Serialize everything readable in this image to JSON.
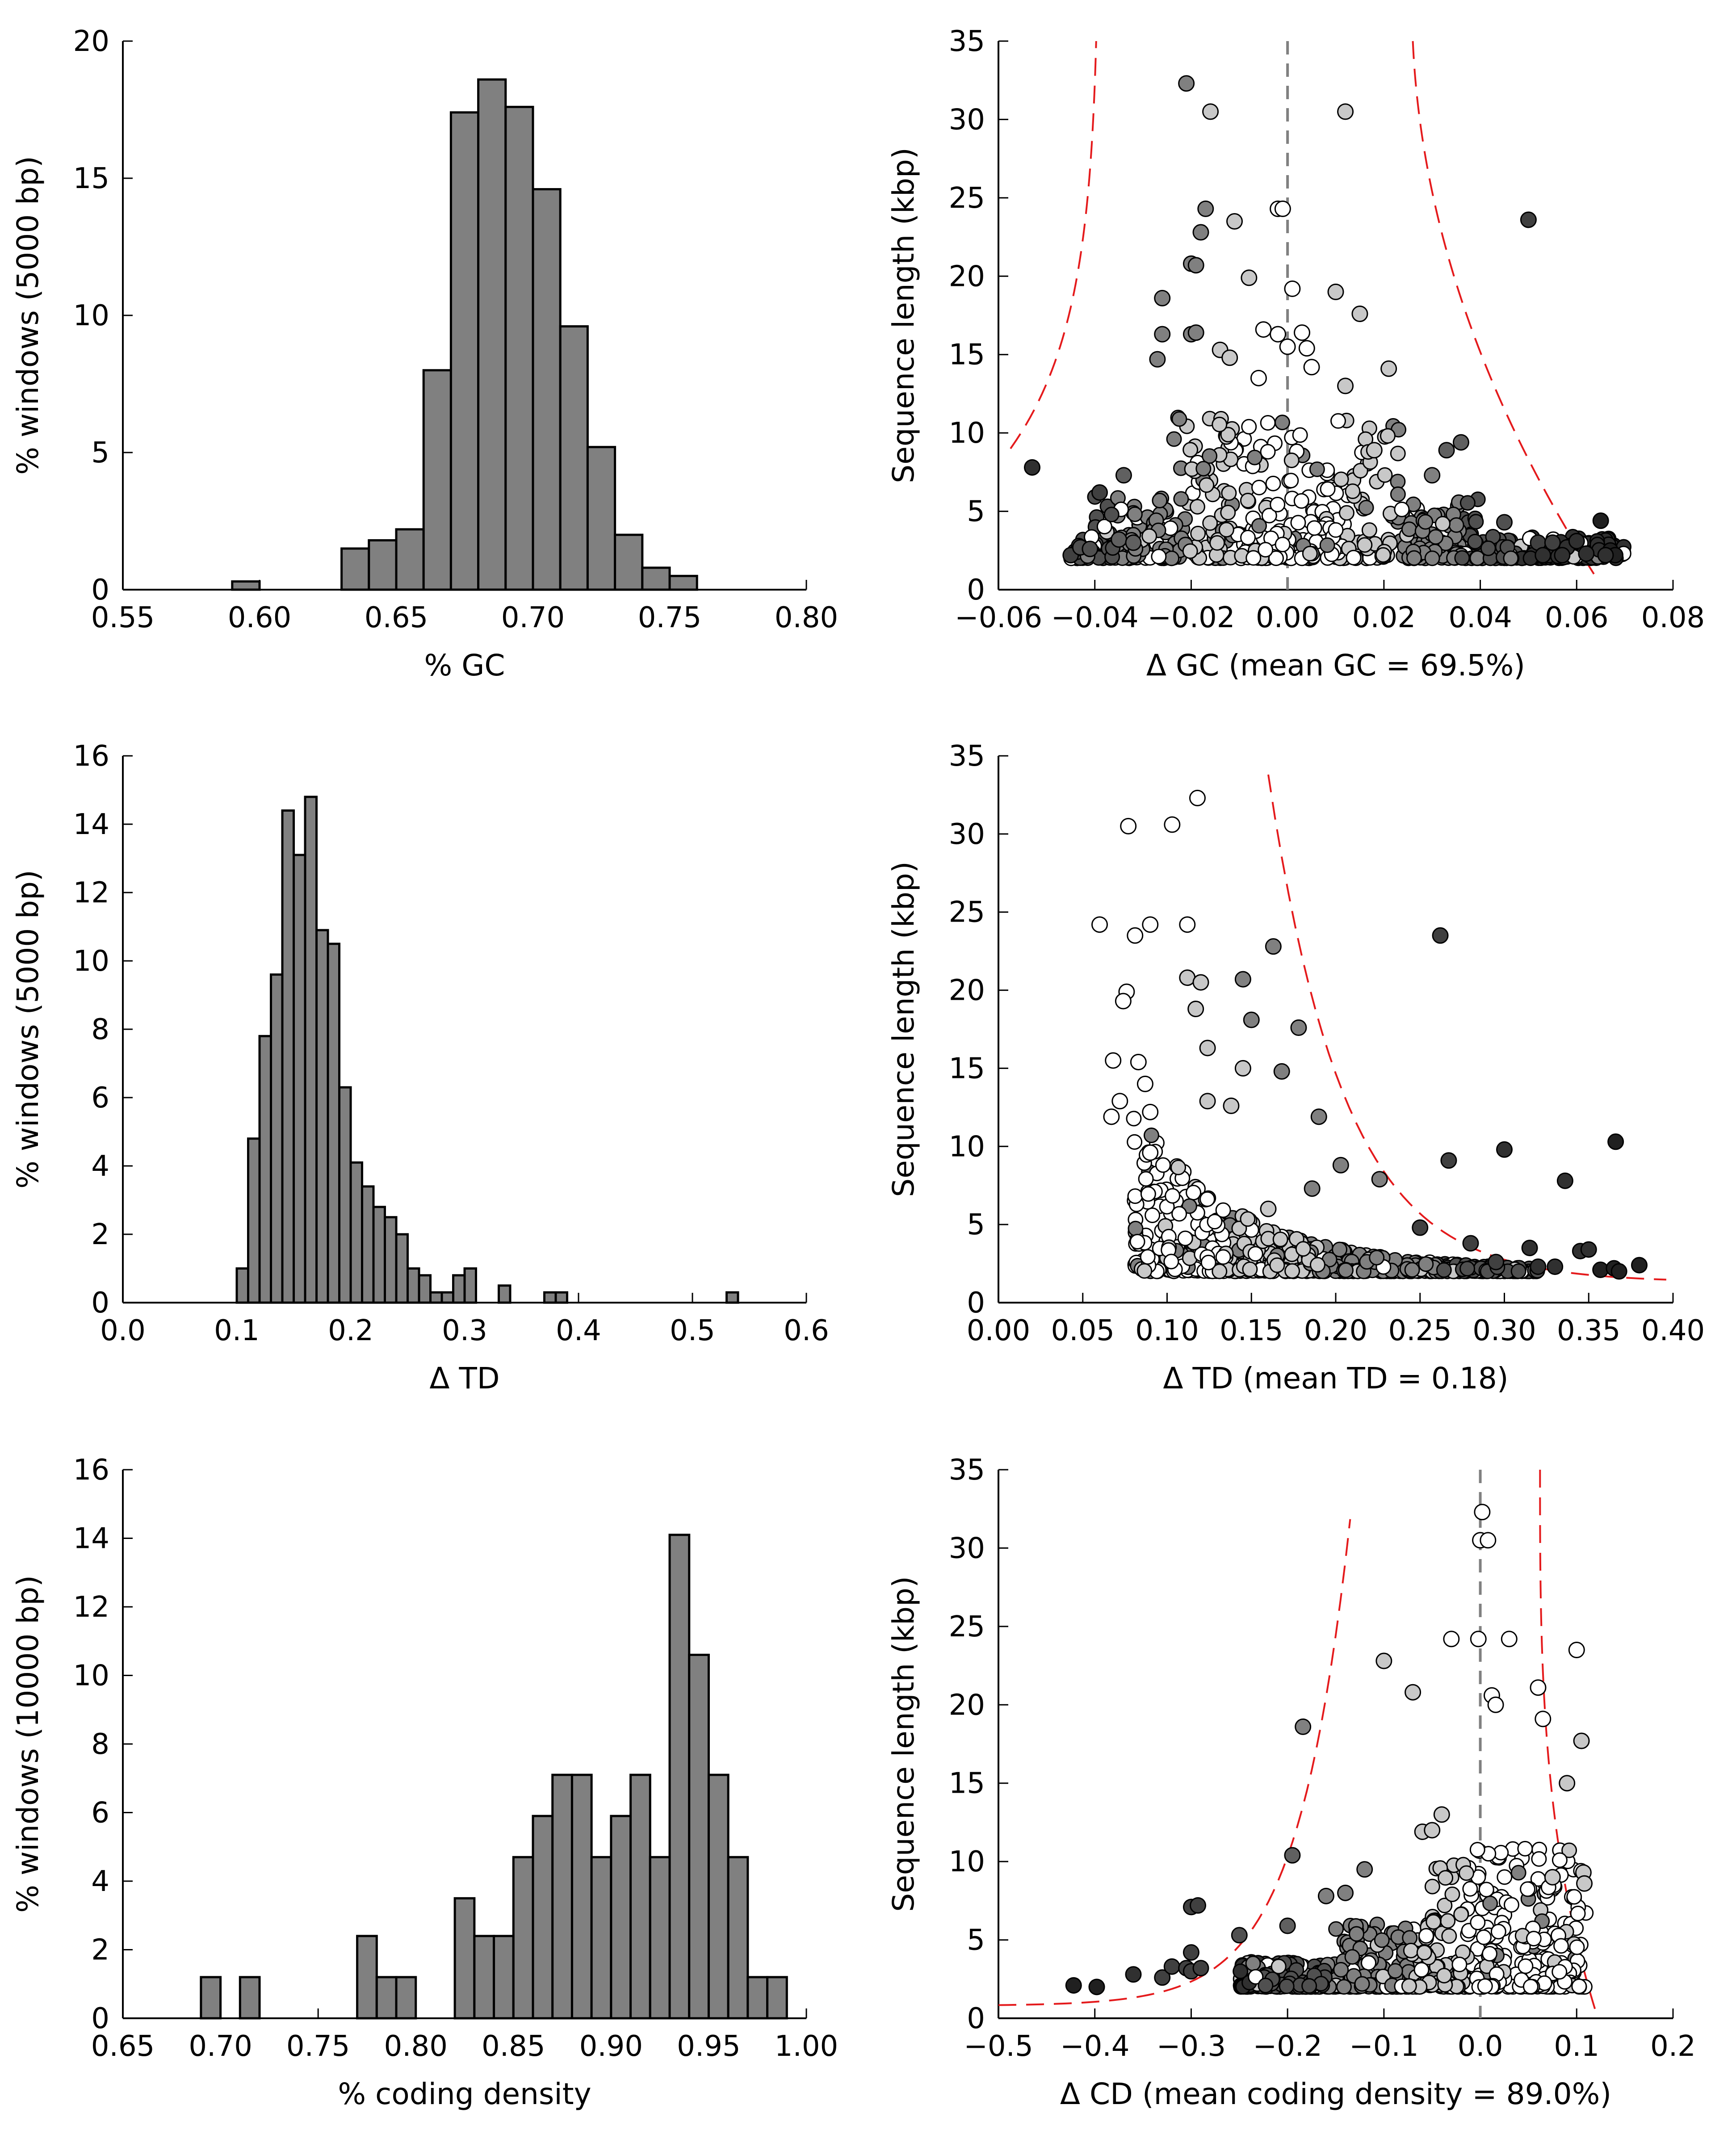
{
  "chart_data": [
    {
      "type": "bar",
      "xlabel": "% GC",
      "ylabel": "% windows (5000 bp)",
      "xlim": [
        0.55,
        0.8
      ],
      "ylim": [
        0,
        20
      ],
      "xticks": [
        "0.55",
        "0.60",
        "0.65",
        "0.70",
        "0.75",
        "0.80"
      ],
      "yticks": [
        "0",
        "5",
        "10",
        "15",
        "20"
      ],
      "bin_edges": [
        0.59,
        0.6,
        0.61,
        0.62,
        0.63,
        0.64,
        0.65,
        0.66,
        0.67,
        0.68,
        0.69,
        0.7,
        0.71,
        0.72,
        0.73,
        0.74,
        0.75,
        0.76
      ],
      "values": [
        0.3,
        0,
        0,
        0,
        1.5,
        1.8,
        2.2,
        8.0,
        17.4,
        18.6,
        17.6,
        14.6,
        9.6,
        5.2,
        2.0,
        0.8,
        0.5
      ]
    },
    {
      "type": "scatter",
      "xlabel": "Δ GC (mean GC = 69.5%)",
      "ylabel": "Sequence length (kbp)",
      "xlim": [
        -0.06,
        0.08
      ],
      "ylim": [
        0,
        35
      ],
      "xticks": [
        "−0.06",
        "−0.04",
        "−0.02",
        "0.00",
        "0.02",
        "0.04",
        "0.06",
        "0.08"
      ],
      "yticks": [
        "0",
        "5",
        "10",
        "15",
        "20",
        "25",
        "30",
        "35"
      ],
      "mean_line": 0,
      "points": [
        [
          -0.053,
          7.8
        ],
        [
          -0.039,
          6.2
        ],
        [
          -0.026,
          18.6
        ],
        [
          -0.026,
          16.3
        ],
        [
          -0.027,
          14.7
        ],
        [
          -0.021,
          32.3
        ],
        [
          -0.016,
          30.5
        ],
        [
          0.012,
          30.5
        ],
        [
          -0.017,
          24.3
        ],
        [
          -0.018,
          22.8
        ],
        [
          -0.011,
          23.5
        ],
        [
          -0.002,
          24.3
        ],
        [
          -0.001,
          24.3
        ],
        [
          0.05,
          23.6
        ],
        [
          -0.02,
          20.8
        ],
        [
          -0.019,
          20.7
        ],
        [
          -0.008,
          19.9
        ],
        [
          0.001,
          19.2
        ],
        [
          0.01,
          19.0
        ],
        [
          -0.02,
          16.3
        ],
        [
          -0.019,
          16.4
        ],
        [
          -0.014,
          15.3
        ],
        [
          -0.012,
          14.8
        ],
        [
          -0.005,
          16.6
        ],
        [
          -0.002,
          16.3
        ],
        [
          0.0,
          15.5
        ],
        [
          0.003,
          16.4
        ],
        [
          0.004,
          15.4
        ],
        [
          0.015,
          17.6
        ],
        [
          0.021,
          14.1
        ],
        [
          0.005,
          14.2
        ],
        [
          -0.006,
          13.5
        ],
        [
          0.012,
          13.0
        ],
        [
          0.033,
          8.9
        ],
        [
          0.036,
          9.4
        ],
        [
          0.03,
          7.3
        ],
        [
          0.018,
          8.9
        ],
        [
          0.045,
          4.3
        ],
        [
          0.052,
          3.0
        ],
        [
          0.055,
          3.0
        ],
        [
          0.058,
          2.7
        ],
        [
          0.06,
          3.1
        ],
        [
          0.065,
          4.4
        ],
        [
          0.067,
          2.5
        ],
        [
          0.068,
          2.2
        ],
        [
          0.066,
          2.2
        ],
        [
          0.062,
          2.3
        ],
        [
          0.057,
          2.2
        ],
        [
          0.053,
          2.2
        ],
        [
          -0.045,
          2.2
        ],
        [
          -0.043,
          2.7
        ],
        [
          -0.041,
          2.6
        ],
        [
          -0.035,
          3.2
        ],
        [
          -0.034,
          7.3
        ],
        [
          -0.032,
          3.0
        ]
      ],
      "point_shades": [
        "#303030",
        "#404040",
        "#808080",
        "#808080",
        "#808080",
        "#808080",
        "#c8c8c8",
        "#c8c8c8",
        "#808080",
        "#808080",
        "#c8c8c8",
        "#ffffff",
        "#ffffff",
        "#404040",
        "#808080",
        "#808080",
        "#c8c8c8",
        "#ffffff",
        "#c8c8c8",
        "#808080",
        "#808080",
        "#c8c8c8",
        "#c8c8c8",
        "#ffffff",
        "#ffffff",
        "#ffffff",
        "#ffffff",
        "#ffffff",
        "#c8c8c8",
        "#c8c8c8",
        "#ffffff",
        "#ffffff",
        "#c8c8c8",
        "#606060",
        "#606060",
        "#808080",
        "#c8c8c8",
        "#505050",
        "#404040",
        "#404040",
        "#303030",
        "#303030",
        "#202020",
        "#202020",
        "#202020",
        "#303030",
        "#303030",
        "#303030",
        "#303030",
        "#404040",
        "#505050",
        "#505050",
        "#606060",
        "#606060",
        "#606060"
      ],
      "dense_cluster": "points concentrated between 2 and 10 kbp across Δ GC −0.045 to 0.07",
      "threshold_curve": "red dashed"
    },
    {
      "type": "bar",
      "xlabel": "Δ TD",
      "ylabel": "% windows (5000 bp)",
      "xlim": [
        0.0,
        0.6
      ],
      "ylim": [
        0,
        16
      ],
      "xticks": [
        "0.0",
        "0.1",
        "0.2",
        "0.3",
        "0.4",
        "0.5",
        "0.6"
      ],
      "yticks": [
        "0",
        "2",
        "4",
        "6",
        "8",
        "10",
        "12",
        "14",
        "16"
      ],
      "bin_edges": [
        0.1,
        0.11,
        0.12,
        0.13,
        0.14,
        0.15,
        0.16,
        0.17,
        0.18,
        0.19,
        0.2,
        0.21,
        0.22,
        0.23,
        0.24,
        0.25,
        0.26,
        0.27,
        0.28,
        0.29,
        0.3,
        0.31,
        0.32,
        0.33,
        0.34,
        0.35,
        0.36,
        0.37,
        0.38,
        0.39,
        0.4,
        0.41,
        0.42,
        0.43,
        0.44,
        0.45,
        0.46,
        0.47,
        0.48,
        0.49,
        0.5,
        0.51,
        0.52,
        0.53,
        0.54
      ],
      "values": [
        1.0,
        4.8,
        7.8,
        9.6,
        14.4,
        13.1,
        14.8,
        10.9,
        10.5,
        6.3,
        4.1,
        3.4,
        2.8,
        2.5,
        2.0,
        1.0,
        0.8,
        0.3,
        0.3,
        0.8,
        1.0,
        0.0,
        0.0,
        0.5,
        0.0,
        0.0,
        0.0,
        0.3,
        0.3,
        0.0,
        0.0,
        0.0,
        0.0,
        0.0,
        0.0,
        0.0,
        0.0,
        0.0,
        0.0,
        0.0,
        0.0,
        0.0,
        0.0,
        0.3
      ]
    },
    {
      "type": "scatter",
      "xlabel": "Δ TD (mean TD = 0.18)",
      "ylabel": "Sequence length (kbp)",
      "xlim": [
        0.0,
        0.4
      ],
      "ylim": [
        0,
        35
      ],
      "xticks": [
        "0.00",
        "0.05",
        "0.10",
        "0.15",
        "0.20",
        "0.25",
        "0.30",
        "0.35",
        "0.40"
      ],
      "yticks": [
        "0",
        "5",
        "10",
        "15",
        "20",
        "25",
        "30",
        "35"
      ],
      "points": [
        [
          0.077,
          30.5
        ],
        [
          0.103,
          30.6
        ],
        [
          0.118,
          32.3
        ],
        [
          0.06,
          24.2
        ],
        [
          0.081,
          23.5
        ],
        [
          0.09,
          24.2
        ],
        [
          0.112,
          24.2
        ],
        [
          0.163,
          22.8
        ],
        [
          0.262,
          23.5
        ],
        [
          0.076,
          19.9
        ],
        [
          0.074,
          19.3
        ],
        [
          0.112,
          20.8
        ],
        [
          0.12,
          20.5
        ],
        [
          0.145,
          20.7
        ],
        [
          0.178,
          17.6
        ],
        [
          0.15,
          18.1
        ],
        [
          0.117,
          18.8
        ],
        [
          0.068,
          15.5
        ],
        [
          0.083,
          15.4
        ],
        [
          0.087,
          14.0
        ],
        [
          0.09,
          12.2
        ],
        [
          0.124,
          16.3
        ],
        [
          0.145,
          15.0
        ],
        [
          0.168,
          14.8
        ],
        [
          0.124,
          12.9
        ],
        [
          0.138,
          12.6
        ],
        [
          0.19,
          11.9
        ],
        [
          0.3,
          9.8
        ],
        [
          0.267,
          9.1
        ],
        [
          0.336,
          7.8
        ],
        [
          0.366,
          10.3
        ],
        [
          0.345,
          3.3
        ],
        [
          0.35,
          3.4
        ],
        [
          0.357,
          2.1
        ],
        [
          0.365,
          2.2
        ],
        [
          0.368,
          2.0
        ],
        [
          0.38,
          2.4
        ],
        [
          0.33,
          2.3
        ],
        [
          0.32,
          2.3
        ],
        [
          0.315,
          3.5
        ],
        [
          0.295,
          2.6
        ],
        [
          0.28,
          3.8
        ],
        [
          0.25,
          4.8
        ],
        [
          0.226,
          7.9
        ],
        [
          0.203,
          8.8
        ],
        [
          0.186,
          7.3
        ],
        [
          0.09,
          9.6
        ],
        [
          0.072,
          12.9
        ],
        [
          0.067,
          11.9
        ],
        [
          0.16,
          6.0
        ]
      ],
      "point_shades": [
        "#ffffff",
        "#ffffff",
        "#ffffff",
        "#ffffff",
        "#ffffff",
        "#ffffff",
        "#ffffff",
        "#808080",
        "#404040",
        "#ffffff",
        "#ffffff",
        "#c8c8c8",
        "#c8c8c8",
        "#808080",
        "#808080",
        "#808080",
        "#c8c8c8",
        "#ffffff",
        "#ffffff",
        "#ffffff",
        "#ffffff",
        "#c8c8c8",
        "#c8c8c8",
        "#808080",
        "#c8c8c8",
        "#c8c8c8",
        "#808080",
        "#303030",
        "#404040",
        "#303030",
        "#202020",
        "#303030",
        "#303030",
        "#202020",
        "#202020",
        "#202020",
        "#202020",
        "#303030",
        "#303030",
        "#303030",
        "#404040",
        "#404040",
        "#404040",
        "#808080",
        "#808080",
        "#808080",
        "#ffffff",
        "#ffffff",
        "#ffffff",
        "#c8c8c8"
      ],
      "dense_cluster": "points concentrated between 2 and 10 kbp across Δ TD 0.08 to 0.30",
      "threshold_curve": "red dashed"
    },
    {
      "type": "bar",
      "xlabel": "% coding density",
      "ylabel": "% windows (10000 bp)",
      "xlim": [
        0.65,
        1.0
      ],
      "ylim": [
        0,
        16
      ],
      "xticks": [
        "0.65",
        "0.70",
        "0.75",
        "0.80",
        "0.85",
        "0.90",
        "0.95",
        "1.00"
      ],
      "yticks": [
        "0",
        "2",
        "4",
        "6",
        "8",
        "10",
        "12",
        "14",
        "16"
      ],
      "bin_edges": [
        0.69,
        0.7,
        0.71,
        0.72,
        0.73,
        0.74,
        0.75,
        0.76,
        0.77,
        0.78,
        0.79,
        0.8,
        0.81,
        0.82,
        0.83,
        0.84,
        0.85,
        0.86,
        0.87,
        0.88,
        0.89,
        0.9,
        0.91,
        0.92,
        0.93,
        0.94,
        0.95,
        0.96,
        0.97,
        0.98,
        0.99
      ],
      "values": [
        1.2,
        0.0,
        1.2,
        0.0,
        0.0,
        0.0,
        0.0,
        0.0,
        2.4,
        1.2,
        1.2,
        0.0,
        0.0,
        3.5,
        2.4,
        2.4,
        4.7,
        5.9,
        7.1,
        7.1,
        4.7,
        5.9,
        7.1,
        4.7,
        14.1,
        10.6,
        7.1,
        4.7,
        1.2,
        1.2
      ]
    },
    {
      "type": "scatter",
      "xlabel": "Δ CD (mean coding density = 89.0%)",
      "ylabel": "Sequence length (kbp)",
      "xlim": [
        -0.5,
        0.2
      ],
      "ylim": [
        0,
        35
      ],
      "xticks": [
        "−0.5",
        "−0.4",
        "−0.3",
        "−0.2",
        "−0.1",
        "0.0",
        "0.1",
        "0.2"
      ],
      "yticks": [
        "0",
        "5",
        "10",
        "15",
        "20",
        "25",
        "30",
        "35"
      ],
      "mean_line": 0,
      "points": [
        [
          -0.422,
          2.1
        ],
        [
          -0.398,
          2.0
        ],
        [
          -0.36,
          2.8
        ],
        [
          -0.33,
          2.6
        ],
        [
          -0.32,
          3.3
        ],
        [
          -0.305,
          3.2
        ],
        [
          -0.3,
          3.0
        ],
        [
          -0.29,
          3.2
        ],
        [
          -0.3,
          7.1
        ],
        [
          -0.293,
          7.2
        ],
        [
          -0.3,
          4.2
        ],
        [
          -0.25,
          5.3
        ],
        [
          -0.2,
          5.9
        ],
        [
          -0.195,
          10.4
        ],
        [
          -0.184,
          18.6
        ],
        [
          -0.1,
          22.8
        ],
        [
          -0.07,
          20.8
        ],
        [
          -0.03,
          24.2
        ],
        [
          -0.002,
          24.2
        ],
        [
          0.03,
          24.2
        ],
        [
          0.1,
          23.5
        ],
        [
          0.105,
          17.7
        ],
        [
          0.09,
          15.0
        ],
        [
          0.0,
          30.5
        ],
        [
          0.008,
          30.5
        ],
        [
          0.002,
          32.3
        ],
        [
          0.012,
          20.6
        ],
        [
          0.016,
          20.0
        ],
        [
          0.06,
          21.1
        ],
        [
          0.065,
          19.1
        ],
        [
          0.075,
          9.0
        ],
        [
          0.107,
          9.3
        ],
        [
          0.108,
          8.6
        ],
        [
          -0.06,
          11.9
        ],
        [
          -0.05,
          12.0
        ],
        [
          -0.04,
          13.0
        ],
        [
          -0.12,
          9.5
        ],
        [
          -0.14,
          8.0
        ],
        [
          -0.16,
          7.8
        ]
      ],
      "point_shades": [
        "#202020",
        "#202020",
        "#303030",
        "#404040",
        "#404040",
        "#404040",
        "#404040",
        "#404040",
        "#404040",
        "#404040",
        "#404040",
        "#505050",
        "#606060",
        "#606060",
        "#808080",
        "#c8c8c8",
        "#c8c8c8",
        "#ffffff",
        "#ffffff",
        "#ffffff",
        "#ffffff",
        "#c8c8c8",
        "#c8c8c8",
        "#ffffff",
        "#ffffff",
        "#ffffff",
        "#ffffff",
        "#ffffff",
        "#ffffff",
        "#ffffff",
        "#c8c8c8",
        "#c8c8c8",
        "#c8c8c8",
        "#c8c8c8",
        "#c8c8c8",
        "#c8c8c8",
        "#808080",
        "#808080",
        "#808080"
      ],
      "dense_cluster": "points concentrated between 2 and 10 kbp across Δ CD −0.25 to 0.11",
      "threshold_curve": "red dashed"
    }
  ]
}
